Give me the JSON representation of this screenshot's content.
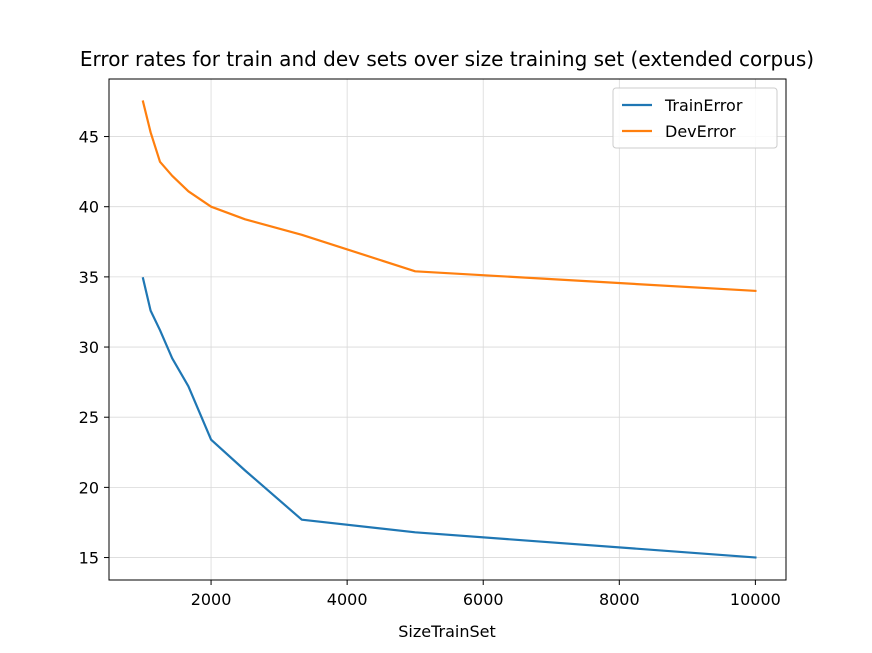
{
  "chart_data": {
    "type": "line",
    "title": "Error rates for train and dev sets over size training set (extended corpus)",
    "xlabel": "SizeTrainSet",
    "ylabel": "",
    "xlim": [
      500,
      10450
    ],
    "ylim": [
      13.4,
      49.1
    ],
    "xticks": [
      2000,
      4000,
      6000,
      8000,
      10000
    ],
    "yticks": [
      15,
      20,
      25,
      30,
      35,
      40,
      45
    ],
    "grid": true,
    "legend_position": "upper right",
    "x": [
      1000,
      1111,
      1250,
      1429,
      1667,
      2000,
      2500,
      3333,
      5000,
      10000
    ],
    "series": [
      {
        "name": "TrainError",
        "color": "#1f77b4",
        "values": [
          34.9,
          32.6,
          31.2,
          29.2,
          27.2,
          23.4,
          21.2,
          17.7,
          16.8,
          15.0
        ]
      },
      {
        "name": "DevError",
        "color": "#ff7f0e",
        "values": [
          47.5,
          45.3,
          43.2,
          42.2,
          41.1,
          40.0,
          39.1,
          38.0,
          35.4,
          34.0
        ]
      }
    ]
  }
}
